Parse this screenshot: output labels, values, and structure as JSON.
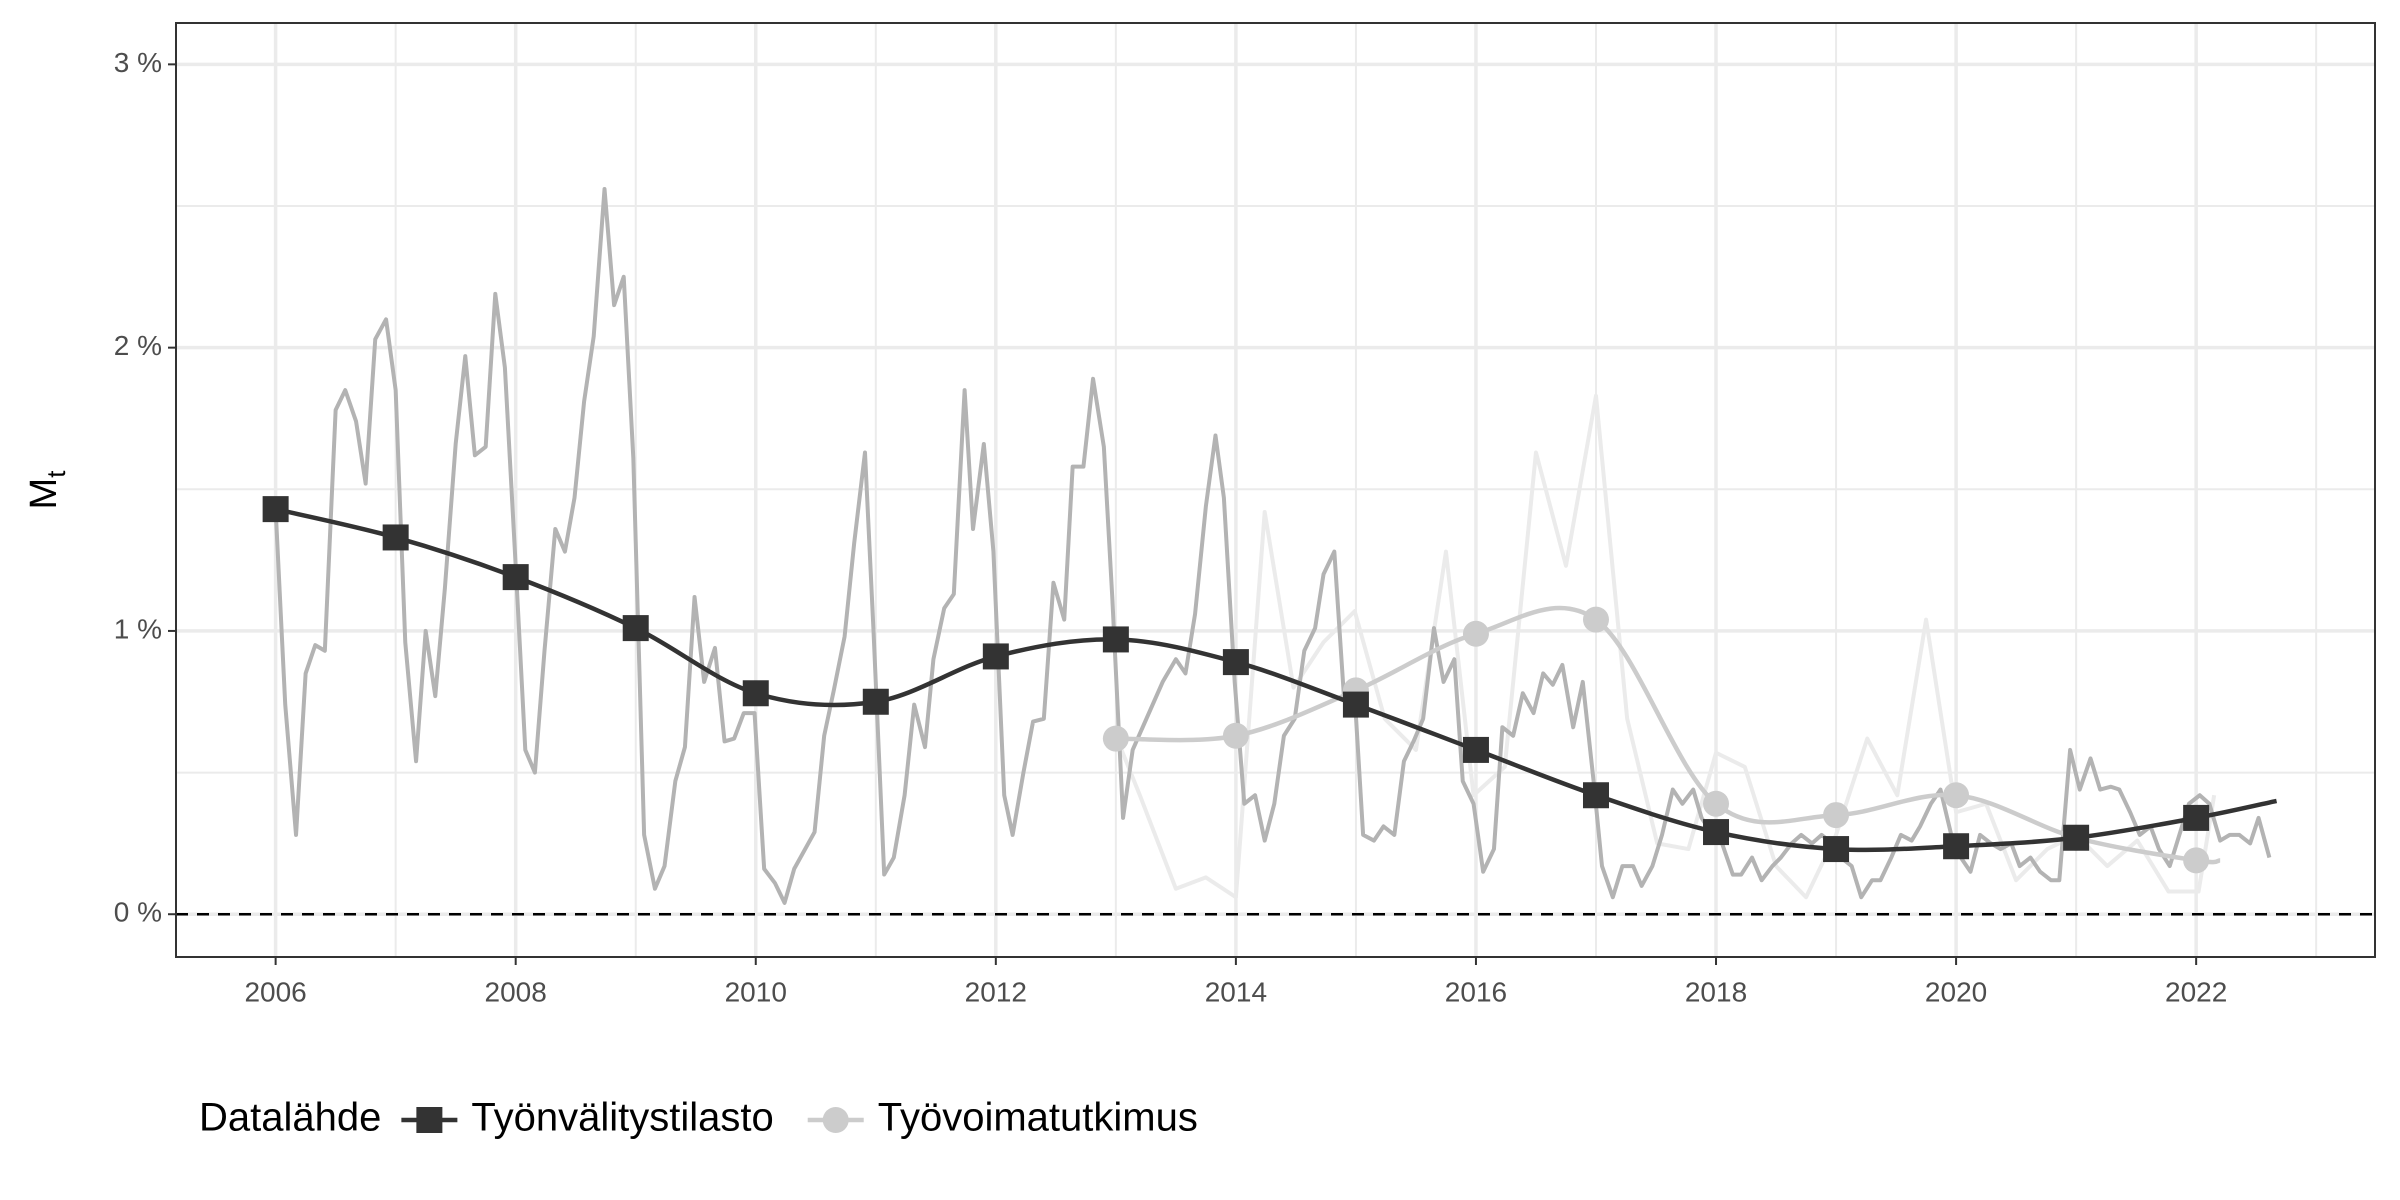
{
  "chart_data": {
    "type": "line",
    "ylabel": "M",
    "ylabel_subscript": "t",
    "legend_title": "Datalähde",
    "legend_position": "bottom",
    "xlim": [
      2005.17,
      2023.49
    ],
    "ylim": [
      -0.151,
      3.146
    ],
    "xticks": [
      2006,
      2008,
      2010,
      2012,
      2014,
      2016,
      2018,
      2020,
      2022
    ],
    "minor_xticks": [
      2005,
      2007,
      2009,
      2011,
      2013,
      2015,
      2017,
      2019,
      2021,
      2023
    ],
    "yticks": [
      {
        "value": 0,
        "label": "0 %"
      },
      {
        "value": 1,
        "label": "1 %"
      },
      {
        "value": 2,
        "label": "2 %"
      },
      {
        "value": 3,
        "label": "3 %"
      }
    ],
    "minor_yticks": [
      0.5,
      1.5,
      2.5
    ],
    "grid": true,
    "hline": 0,
    "series": [
      {
        "color": "#ebebeb",
        "x": [
          2013.0,
          2013.2,
          2013.5,
          2013.75,
          2014.0,
          2014.24,
          2014.48,
          2014.73,
          2014.99,
          2015.24,
          2015.5,
          2015.75,
          2015.98,
          2016.24,
          2016.5,
          2016.75,
          2017.0,
          2017.26,
          2017.51,
          2017.77,
          2018.0,
          2018.24,
          2018.5,
          2018.75,
          2019.0,
          2019.26,
          2019.51,
          2019.75,
          2020.0,
          2020.25,
          2020.5,
          2020.76,
          2021.0,
          2021.26,
          2021.51,
          2021.77,
          2022.02,
          2022.15
        ],
        "values": [
          0.63,
          0.42,
          0.09,
          0.13,
          0.06,
          1.42,
          0.8,
          0.96,
          1.07,
          0.69,
          0.58,
          1.28,
          0.42,
          0.52,
          1.63,
          1.23,
          1.83,
          0.69,
          0.25,
          0.23,
          0.57,
          0.52,
          0.17,
          0.06,
          0.28,
          0.62,
          0.42,
          1.04,
          0.36,
          0.39,
          0.12,
          0.23,
          0.28,
          0.17,
          0.26,
          0.08,
          0.08,
          0.42
        ]
      },
      {
        "color": "#b3b3b3",
        "x": [
          2006.0,
          2006.08,
          2006.17,
          2006.25,
          2006.33,
          2006.41,
          2006.5,
          2006.58,
          2006.67,
          2006.75,
          2006.83,
          2006.92,
          2007.0,
          2007.08,
          2007.17,
          2007.25,
          2007.33,
          2007.41,
          2007.5,
          2007.58,
          2007.66,
          2007.75,
          2007.83,
          2007.91,
          2008.0,
          2008.08,
          2008.16,
          2008.24,
          2008.33,
          2008.41,
          2008.49,
          2008.57,
          2008.65,
          2008.74,
          2008.82,
          2008.9,
          2008.98,
          2009.07,
          2009.16,
          2009.24,
          2009.33,
          2009.41,
          2009.49,
          2009.57,
          2009.66,
          2009.74,
          2009.82,
          2009.9,
          2009.99,
          2010.07,
          2010.16,
          2010.24,
          2010.32,
          2010.49,
          2010.57,
          2010.65,
          2010.74,
          2010.82,
          2010.91,
          2010.98,
          2011.07,
          2011.15,
          2011.24,
          2011.32,
          2011.41,
          2011.48,
          2011.57,
          2011.65,
          2011.74,
          2011.81,
          2011.9,
          2011.98,
          2012.07,
          2012.14,
          2012.23,
          2012.31,
          2012.4,
          2012.48,
          2012.57,
          2012.64,
          2012.73,
          2012.81,
          2012.9,
          2012.97,
          2013.06,
          2013.14,
          2013.39,
          2013.5,
          2013.58,
          2013.66,
          2013.75,
          2013.83,
          2013.9,
          2013.99,
          2014.07,
          2014.16,
          2014.24,
          2014.32,
          2014.4,
          2014.49,
          2014.57,
          2014.66,
          2014.73,
          2014.82,
          2014.9,
          2014.99,
          2015.06,
          2015.15,
          2015.23,
          2015.32,
          2015.4,
          2015.48,
          2015.56,
          2015.65,
          2015.73,
          2015.82,
          2015.89,
          2015.98,
          2016.06,
          2016.15,
          2016.22,
          2016.31,
          2016.39,
          2016.48,
          2016.56,
          2016.64,
          2016.72,
          2016.81,
          2016.89,
          2016.98,
          2017.05,
          2017.14,
          2017.22,
          2017.31,
          2017.38,
          2017.47,
          2017.55,
          2017.64,
          2017.72,
          2017.81,
          2017.88,
          2017.97,
          2018.05,
          2018.14,
          2018.21,
          2018.3,
          2018.38,
          2018.47,
          2018.54,
          2018.63,
          2018.71,
          2018.8,
          2018.88,
          2018.97,
          2019.04,
          2019.13,
          2019.21,
          2019.3,
          2019.37,
          2019.46,
          2019.54,
          2019.63,
          2019.7,
          2019.79,
          2019.87,
          2019.96,
          2020.04,
          2020.12,
          2020.2,
          2020.29,
          2020.37,
          2020.46,
          2020.53,
          2020.62,
          2020.7,
          2020.79,
          2020.86,
          2020.95,
          2021.03,
          2021.12,
          2021.2,
          2021.29,
          2021.36,
          2021.45,
          2021.53,
          2021.62,
          2021.69,
          2021.78,
          2021.86,
          2021.94,
          2022.03,
          2022.11,
          2022.2,
          2022.28,
          2022.36,
          2022.45,
          2022.52,
          2022.61
        ],
        "values": [
          1.43,
          0.74,
          0.28,
          0.85,
          0.95,
          0.93,
          1.78,
          1.85,
          1.74,
          1.52,
          2.03,
          2.1,
          1.85,
          0.96,
          0.54,
          1.0,
          0.77,
          1.15,
          1.66,
          1.97,
          1.62,
          1.65,
          2.19,
          1.93,
          1.23,
          0.58,
          0.5,
          0.93,
          1.36,
          1.28,
          1.47,
          1.81,
          2.04,
          2.56,
          2.15,
          2.25,
          1.61,
          0.28,
          0.09,
          0.17,
          0.47,
          0.59,
          1.12,
          0.82,
          0.94,
          0.61,
          0.62,
          0.71,
          0.71,
          0.16,
          0.11,
          0.04,
          0.16,
          0.29,
          0.63,
          0.79,
          0.98,
          1.31,
          1.63,
          1.01,
          0.14,
          0.2,
          0.42,
          0.74,
          0.59,
          0.9,
          1.08,
          1.13,
          1.85,
          1.36,
          1.66,
          1.28,
          0.42,
          0.28,
          0.5,
          0.68,
          0.69,
          1.17,
          1.04,
          1.58,
          1.58,
          1.89,
          1.65,
          1.12,
          0.34,
          0.58,
          0.82,
          0.9,
          0.85,
          1.06,
          1.44,
          1.69,
          1.47,
          0.82,
          0.39,
          0.42,
          0.26,
          0.39,
          0.63,
          0.69,
          0.93,
          1.01,
          1.2,
          1.28,
          0.77,
          0.77,
          0.28,
          0.26,
          0.31,
          0.28,
          0.54,
          0.61,
          0.69,
          1.01,
          0.82,
          0.9,
          0.47,
          0.39,
          0.15,
          0.23,
          0.66,
          0.63,
          0.78,
          0.71,
          0.85,
          0.81,
          0.88,
          0.66,
          0.82,
          0.47,
          0.17,
          0.06,
          0.17,
          0.17,
          0.1,
          0.17,
          0.28,
          0.44,
          0.39,
          0.44,
          0.34,
          0.28,
          0.25,
          0.14,
          0.14,
          0.2,
          0.12,
          0.17,
          0.2,
          0.25,
          0.28,
          0.25,
          0.28,
          0.25,
          0.2,
          0.17,
          0.06,
          0.12,
          0.12,
          0.2,
          0.28,
          0.26,
          0.31,
          0.39,
          0.44,
          0.28,
          0.2,
          0.15,
          0.28,
          0.25,
          0.23,
          0.25,
          0.17,
          0.2,
          0.15,
          0.12,
          0.12,
          0.58,
          0.44,
          0.55,
          0.44,
          0.45,
          0.44,
          0.36,
          0.28,
          0.31,
          0.23,
          0.17,
          0.28,
          0.39,
          0.42,
          0.39,
          0.26,
          0.28,
          0.28,
          0.25,
          0.34,
          0.2
        ]
      },
      {
        "name": "Työvoimatutkimus",
        "color": "#cccccc",
        "marker": "circle",
        "smooth": true,
        "x": [
          2013,
          2014,
          2015,
          2016,
          2017,
          2018,
          2019,
          2020,
          2021,
          2022,
          2022.2
        ],
        "values": [
          0.62,
          0.63,
          0.79,
          0.99,
          1.04,
          0.39,
          0.35,
          0.42,
          0.27,
          0.19,
          0.19
        ]
      },
      {
        "name": "Työnvälitystilasto",
        "color": "#333333",
        "marker": "square",
        "smooth": true,
        "x": [
          2006,
          2007,
          2008,
          2009,
          2010,
          2011,
          2012,
          2013,
          2014,
          2015,
          2016,
          2017,
          2018,
          2019,
          2020,
          2021,
          2022,
          2022.67
        ],
        "values": [
          1.43,
          1.33,
          1.19,
          1.01,
          0.78,
          0.75,
          0.91,
          0.97,
          0.89,
          0.74,
          0.58,
          0.42,
          0.29,
          0.23,
          0.24,
          0.27,
          0.34,
          0.4
        ]
      }
    ],
    "legend_order": [
      3,
      2
    ]
  }
}
